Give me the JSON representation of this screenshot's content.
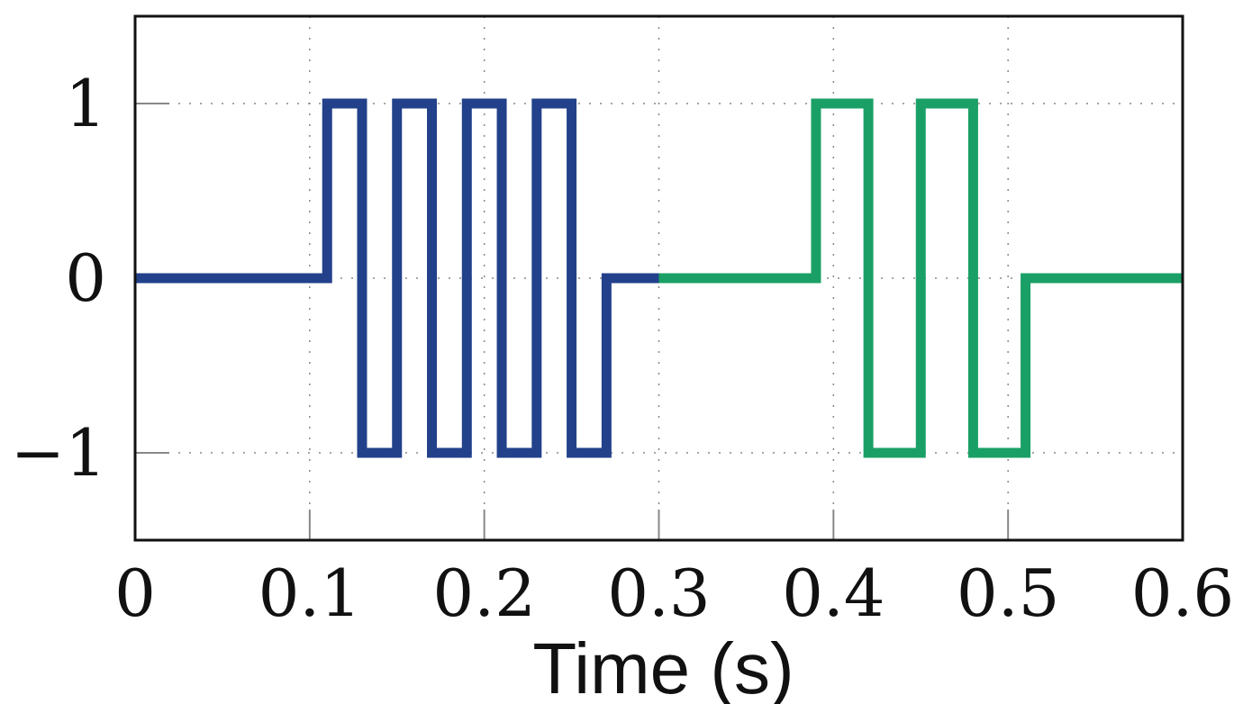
{
  "chart_data": {
    "type": "line",
    "step": true,
    "title": "",
    "xlabel": "Time (s)",
    "ylabel": "",
    "xlim": [
      0,
      0.6
    ],
    "ylim": [
      -1.5,
      1.5
    ],
    "grid": true,
    "x_ticks": [
      0,
      0.1,
      0.2,
      0.3,
      0.4,
      0.5,
      0.6
    ],
    "x_tick_labels": [
      "0",
      "0.1",
      "0.2",
      "0.3",
      "0.4",
      "0.5",
      "0.6"
    ],
    "y_ticks": [
      1,
      0,
      -1
    ],
    "y_tick_labels": [
      "1",
      "0",
      "−1"
    ],
    "series": [
      {
        "color": "#22418a",
        "points": [
          [
            0,
            0
          ],
          [
            0.11,
            0
          ],
          [
            0.11,
            1
          ],
          [
            0.13,
            1
          ],
          [
            0.13,
            -1
          ],
          [
            0.15,
            -1
          ],
          [
            0.15,
            1
          ],
          [
            0.17,
            1
          ],
          [
            0.17,
            -1
          ],
          [
            0.19,
            -1
          ],
          [
            0.19,
            1
          ],
          [
            0.21,
            1
          ],
          [
            0.21,
            -1
          ],
          [
            0.23,
            -1
          ],
          [
            0.23,
            1
          ],
          [
            0.25,
            1
          ],
          [
            0.25,
            -1
          ],
          [
            0.27,
            -1
          ],
          [
            0.27,
            0
          ],
          [
            0.3,
            0
          ]
        ]
      },
      {
        "color": "#1aa066",
        "points": [
          [
            0.3,
            0
          ],
          [
            0.39,
            0
          ],
          [
            0.39,
            1
          ],
          [
            0.42,
            1
          ],
          [
            0.42,
            -1
          ],
          [
            0.45,
            -1
          ],
          [
            0.45,
            1
          ],
          [
            0.48,
            1
          ],
          [
            0.48,
            -1
          ],
          [
            0.51,
            -1
          ],
          [
            0.51,
            0
          ],
          [
            0.6,
            0
          ]
        ]
      }
    ]
  }
}
